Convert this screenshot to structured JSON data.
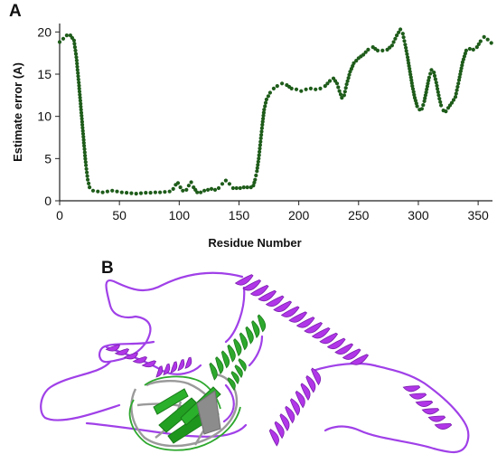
{
  "panel_a_label": "A",
  "panel_b_label": "B",
  "chart_data": {
    "type": "scatter",
    "xlabel": "Residue Number",
    "ylabel": "Estimate error (A)",
    "xlim": [
      0,
      362
    ],
    "ylim": [
      0,
      21
    ],
    "xticks": [
      0,
      50,
      100,
      150,
      200,
      250,
      300,
      350
    ],
    "yticks": [
      0,
      5,
      10,
      15,
      20
    ],
    "marker_color": "#1e5c1a",
    "points": [
      [
        0,
        18.8
      ],
      [
        3,
        19.2
      ],
      [
        6,
        19.6
      ],
      [
        9,
        19.6
      ],
      [
        12,
        19.0
      ],
      [
        14,
        17.0
      ],
      [
        16,
        14.0
      ],
      [
        17.5,
        11.5
      ],
      [
        19,
        9.0
      ],
      [
        20.5,
        6.5
      ],
      [
        22,
        4.2
      ],
      [
        23.5,
        2.5
      ],
      [
        25,
        1.6
      ],
      [
        28,
        1.2
      ],
      [
        32,
        1.1
      ],
      [
        36,
        1.0
      ],
      [
        40,
        1.1
      ],
      [
        44,
        1.2
      ],
      [
        48,
        1.1
      ],
      [
        52,
        1.0
      ],
      [
        56,
        0.95
      ],
      [
        60,
        0.9
      ],
      [
        64,
        0.85
      ],
      [
        68,
        0.9
      ],
      [
        72,
        0.95
      ],
      [
        76,
        0.95
      ],
      [
        80,
        1.0
      ],
      [
        84,
        1.0
      ],
      [
        88,
        1.05
      ],
      [
        92,
        1.1
      ],
      [
        95,
        1.4
      ],
      [
        97,
        1.9
      ],
      [
        99,
        2.1
      ],
      [
        101,
        1.6
      ],
      [
        103,
        1.2
      ],
      [
        106,
        1.3
      ],
      [
        108,
        1.8
      ],
      [
        110,
        2.2
      ],
      [
        112,
        1.6
      ],
      [
        115,
        1.0
      ],
      [
        118,
        1.0
      ],
      [
        121,
        1.2
      ],
      [
        124,
        1.3
      ],
      [
        127,
        1.4
      ],
      [
        130,
        1.3
      ],
      [
        133,
        1.5
      ],
      [
        136,
        2.0
      ],
      [
        139,
        2.4
      ],
      [
        142,
        2.0
      ],
      [
        145,
        1.5
      ],
      [
        148,
        1.5
      ],
      [
        151,
        1.5
      ],
      [
        154,
        1.6
      ],
      [
        157,
        1.6
      ],
      [
        160,
        1.6
      ],
      [
        162,
        1.8
      ],
      [
        163.5,
        2.5
      ],
      [
        165,
        3.5
      ],
      [
        166.5,
        5.0
      ],
      [
        168,
        7.0
      ],
      [
        169.5,
        9.0
      ],
      [
        171,
        10.8
      ],
      [
        173,
        12.0
      ],
      [
        176,
        12.8
      ],
      [
        179,
        13.3
      ],
      [
        182,
        13.6
      ],
      [
        186,
        13.9
      ],
      [
        190,
        13.7
      ],
      [
        194,
        13.3
      ],
      [
        198,
        13.2
      ],
      [
        202,
        13.0
      ],
      [
        206,
        13.2
      ],
      [
        210,
        13.3
      ],
      [
        214,
        13.2
      ],
      [
        218,
        13.3
      ],
      [
        222,
        13.6
      ],
      [
        226,
        14.2
      ],
      [
        229,
        14.5
      ],
      [
        232,
        13.9
      ],
      [
        234,
        13.0
      ],
      [
        236,
        12.2
      ],
      [
        238,
        12.5
      ],
      [
        240,
        13.8
      ],
      [
        243,
        15.3
      ],
      [
        246,
        16.3
      ],
      [
        250,
        16.9
      ],
      [
        254,
        17.3
      ],
      [
        258,
        17.9
      ],
      [
        262,
        18.2
      ],
      [
        266,
        17.8
      ],
      [
        270,
        17.8
      ],
      [
        274,
        17.9
      ],
      [
        278,
        18.4
      ],
      [
        282,
        19.6
      ],
      [
        285,
        20.3
      ],
      [
        287,
        19.8
      ],
      [
        289,
        18.5
      ],
      [
        291,
        17.0
      ],
      [
        293,
        15.3
      ],
      [
        295,
        13.6
      ],
      [
        297,
        12.2
      ],
      [
        299,
        11.2
      ],
      [
        301,
        10.8
      ],
      [
        303,
        10.9
      ],
      [
        305,
        11.8
      ],
      [
        307,
        13.2
      ],
      [
        309,
        14.6
      ],
      [
        311,
        15.5
      ],
      [
        313,
        15.2
      ],
      [
        315,
        14.0
      ],
      [
        317,
        12.5
      ],
      [
        319,
        11.3
      ],
      [
        321,
        10.7
      ],
      [
        323,
        10.6
      ],
      [
        325,
        11.0
      ],
      [
        328,
        11.6
      ],
      [
        331,
        12.3
      ],
      [
        334,
        14.3
      ],
      [
        337,
        16.4
      ],
      [
        340,
        17.8
      ],
      [
        343,
        18.0
      ],
      [
        346,
        17.9
      ],
      [
        349,
        18.2
      ],
      [
        352,
        18.9
      ],
      [
        355,
        19.4
      ],
      [
        358,
        19.1
      ],
      [
        361,
        18.7
      ]
    ]
  }
}
